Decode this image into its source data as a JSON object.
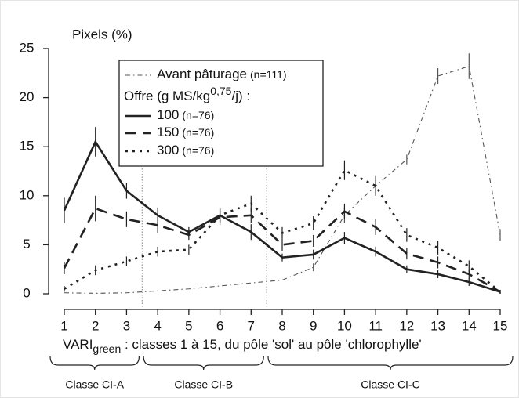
{
  "chart_data": {
    "type": "line",
    "y_label": "Pixels (%)",
    "x_label": {
      "main": "VARI",
      "sub": "green",
      "rest": " : classes 1 à 15, du pôle 'sol' au pôle 'chlorophylle'"
    },
    "x": [
      1,
      2,
      3,
      4,
      5,
      6,
      7,
      8,
      9,
      10,
      11,
      12,
      13,
      14,
      15
    ],
    "xlim": [
      1,
      15
    ],
    "xticks": [
      1,
      2,
      3,
      4,
      5,
      6,
      7,
      8,
      9,
      10,
      11,
      12,
      13,
      14,
      15
    ],
    "ylim": [
      0,
      25
    ],
    "yticks": [
      0,
      5,
      10,
      15,
      20,
      25
    ],
    "separators": [
      3.5,
      7.5
    ],
    "classes": [
      {
        "label": "Classe CI-A",
        "from": 1,
        "to": 3
      },
      {
        "label": "Classe CI-B",
        "from": 4,
        "to": 7
      },
      {
        "label": "Classe CI-C",
        "from": 8,
        "to": 15
      }
    ],
    "legend_group_title": {
      "main": "Offre (g MS/kg",
      "sup": "0,75",
      "rest": "/j) :"
    },
    "series": [
      {
        "name": "Avant pâturage",
        "n": "(n=111)",
        "color": "#555555",
        "style": "dashdot",
        "values": [
          0.1,
          0.05,
          0.1,
          0.3,
          0.5,
          0.8,
          1.1,
          1.4,
          2.7,
          8,
          11,
          13.7,
          22.2,
          23.2,
          6
        ],
        "errors": [
          0,
          0,
          0,
          0,
          0,
          0,
          0,
          0,
          0.4,
          0.8,
          0.8,
          0.5,
          0.8,
          1.3,
          0.6
        ]
      },
      {
        "name": "100",
        "n": "(n=76)",
        "color": "#222222",
        "style": "solid",
        "values": [
          8.5,
          15.5,
          10.5,
          8,
          6.3,
          8,
          6.3,
          3.7,
          4,
          5.7,
          4.3,
          2.5,
          2,
          1.2,
          0.2
        ],
        "errors": [
          1.3,
          1.5,
          0.8,
          0.8,
          0.5,
          0.8,
          0.8,
          0.4,
          0.5,
          0.6,
          0.5,
          0.4,
          0.4,
          0.4,
          0.2
        ]
      },
      {
        "name": "150",
        "n": "(n=76)",
        "color": "#222222",
        "style": "dashed",
        "values": [
          2.6,
          8.7,
          7.6,
          7,
          6,
          7.8,
          8,
          5,
          5.4,
          8.4,
          6.8,
          4.1,
          3.2,
          2,
          0.2
        ],
        "errors": [
          0.6,
          1.3,
          0.8,
          0.8,
          0.5,
          0.8,
          0.8,
          0.6,
          0.6,
          0.8,
          0.8,
          0.6,
          0.6,
          0.5,
          0.2
        ]
      },
      {
        "name": "300",
        "n": "(n=76)",
        "color": "#222222",
        "style": "dotted",
        "values": [
          0.5,
          2.4,
          3.3,
          4.3,
          4.5,
          8,
          9.2,
          6.2,
          7.2,
          12.6,
          11,
          6,
          4.7,
          2.8,
          0.2
        ],
        "errors": [
          0.3,
          0.5,
          0.5,
          0.5,
          0.5,
          0.7,
          0.8,
          0.6,
          0.7,
          1,
          1,
          0.7,
          0.7,
          0.6,
          0.2
        ]
      }
    ]
  }
}
